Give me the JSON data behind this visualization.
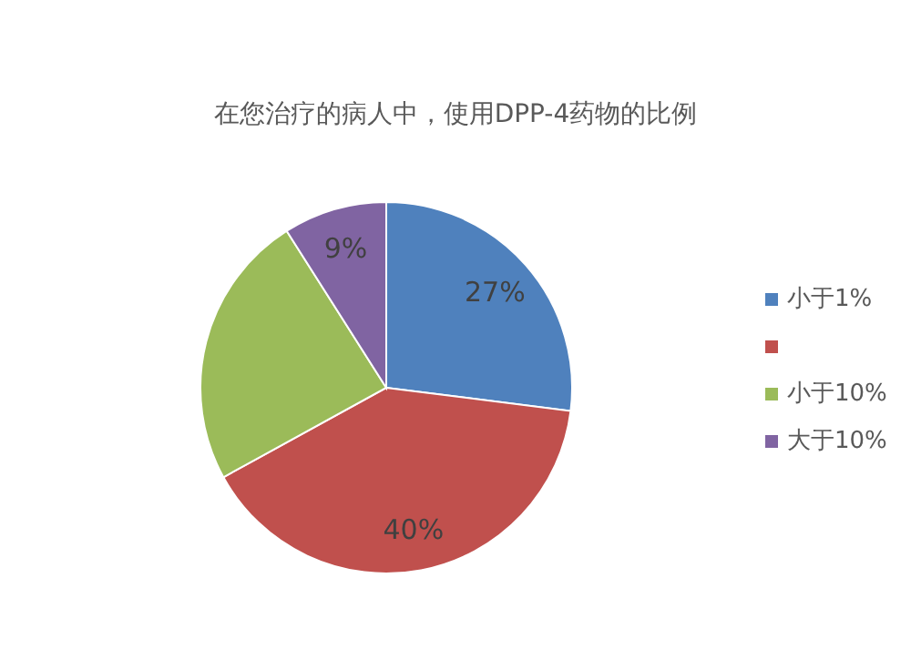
{
  "chart_data": {
    "type": "pie",
    "title": "在您治疗的病人中，使用DPP-4药物的比例",
    "categories": [
      "小于1%",
      null,
      "小于10%",
      "大于10%"
    ],
    "values": [
      27,
      40,
      24,
      9
    ],
    "colors": [
      "#4f81bd",
      "#c0504d",
      "#9bbb59",
      "#8064a2"
    ],
    "value_labels": [
      "27%",
      "40%",
      null,
      "9%"
    ],
    "legend": "right"
  }
}
